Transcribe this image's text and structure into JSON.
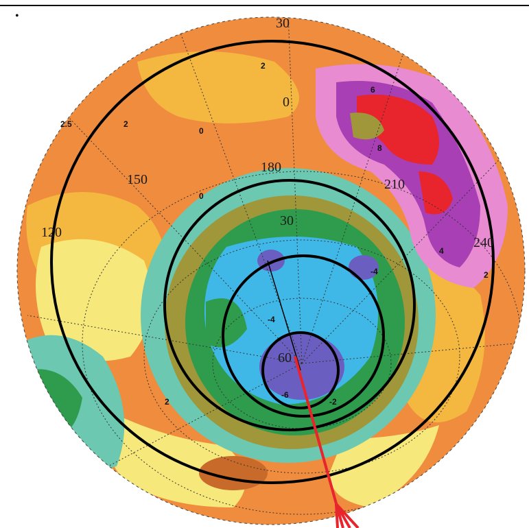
{
  "figure": {
    "corner_mark": "•",
    "longitude_labels": [
      "30",
      "120",
      "150",
      "180",
      "210",
      "240"
    ],
    "latitude_labels": [
      "0",
      "30",
      "60"
    ],
    "contour_labels": [
      "-2",
      "-4",
      "-6",
      "0",
      "2",
      "2.5",
      "4",
      "6",
      "8"
    ],
    "colors": {
      "deep_low": "#6a5fc0",
      "low": "#3fb8e8",
      "mid_low": "#2e9c4c",
      "olive": "#a0963a",
      "teal": "#6cc8b0",
      "pale": "#f6e87a",
      "gold": "#f4b740",
      "orange": "#ef8c3e",
      "pink": "#e98bd0",
      "purple": "#a93fb5",
      "red": "#e8242c",
      "track": "#e8242c",
      "rings": "#000000"
    }
  }
}
